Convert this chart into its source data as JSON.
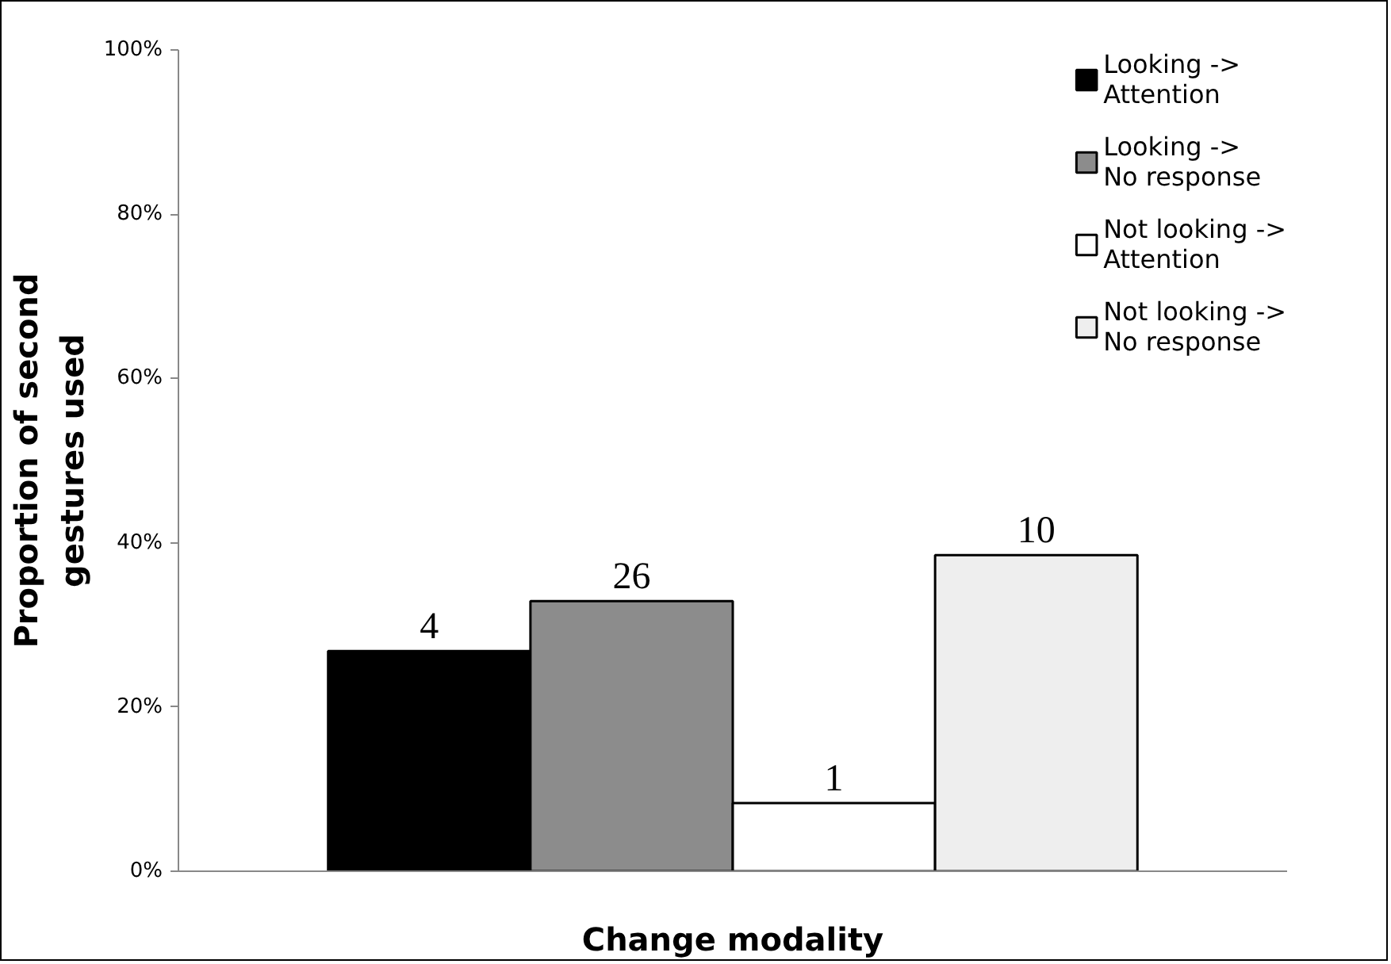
{
  "chart_data": {
    "type": "bar",
    "xlabel": "Change modality",
    "ylabel": "Proportion of second\ngestures used",
    "categories": [
      null
    ],
    "series": [
      {
        "name": "Looking ->\nAttention",
        "color": "#000000",
        "values": [
          26.8
        ]
      },
      {
        "name": "Looking ->\nNo response",
        "color": "#8c8c8c",
        "values": [
          32.9
        ]
      },
      {
        "name": "Not looking ->\nAttention",
        "color": "#ffffff",
        "values": [
          8.3
        ]
      },
      {
        "name": "Not looking ->\nNo response",
        "color": "#eeeeee",
        "values": [
          38.5
        ]
      }
    ],
    "annotations": [
      {
        "text": "4",
        "y": 26.8
      },
      {
        "text": "26",
        "y": 32.9
      },
      {
        "text": "1",
        "y": 8.3
      },
      {
        "text": "10",
        "y": 38.5
      }
    ],
    "ylim": [
      0,
      100
    ],
    "yticks": [
      {
        "value": 0,
        "label": "0%"
      },
      {
        "value": 20,
        "label": "20%"
      },
      {
        "value": 40,
        "label": "40%"
      },
      {
        "value": 60,
        "label": "60%"
      },
      {
        "value": 80,
        "label": "80%"
      },
      {
        "value": 100,
        "label": "100%"
      }
    ],
    "legend": "top right",
    "grid": false
  }
}
